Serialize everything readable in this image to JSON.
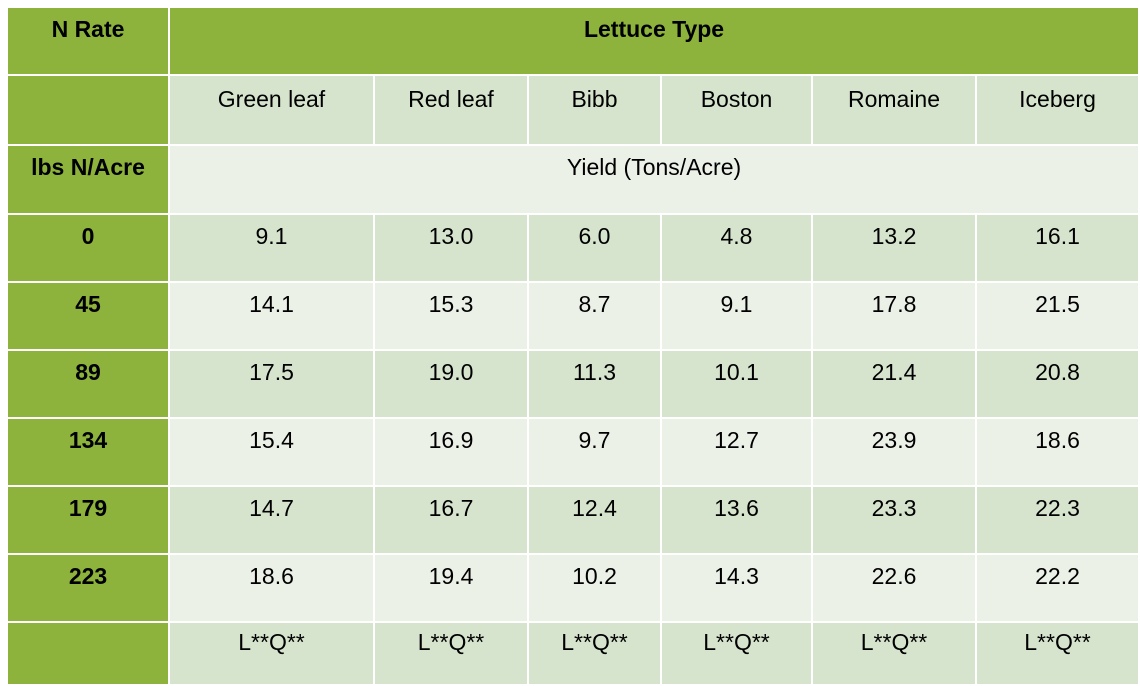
{
  "header": {
    "n_rate_label": "N Rate",
    "lettuce_type_label": "Lettuce Type",
    "units_label": "lbs N/Acre",
    "yield_label": "Yield (Tons/Acre)"
  },
  "lettuce_types": [
    "Green leaf",
    "Red leaf",
    "Bibb",
    "Boston",
    "Romaine",
    "Iceberg"
  ],
  "rows": [
    {
      "rate": "0",
      "values": [
        "9.1",
        "13.0",
        "6.0",
        "4.8",
        "13.2",
        "16.1"
      ]
    },
    {
      "rate": "45",
      "values": [
        "14.1",
        "15.3",
        "8.7",
        "9.1",
        "17.8",
        "21.5"
      ]
    },
    {
      "rate": "89",
      "values": [
        "17.5",
        "19.0",
        "11.3",
        "10.1",
        "21.4",
        "20.8"
      ]
    },
    {
      "rate": "134",
      "values": [
        "15.4",
        "16.9",
        "9.7",
        "12.7",
        "23.9",
        "18.6"
      ]
    },
    {
      "rate": "179",
      "values": [
        "14.7",
        "16.7",
        "12.4",
        "13.6",
        "23.3",
        "22.3"
      ]
    },
    {
      "rate": "223",
      "values": [
        "18.6",
        "19.4",
        "10.2",
        "14.3",
        "22.6",
        "22.2"
      ]
    }
  ],
  "significance": [
    "L**Q**",
    "L**Q**",
    "L**Q**",
    "L**Q**",
    "L**Q**",
    "L**Q**"
  ],
  "colors": {
    "header_green": "#8db33c",
    "row_shade_dark": "#d6e4cd",
    "row_shade_light": "#ecf1e8"
  }
}
